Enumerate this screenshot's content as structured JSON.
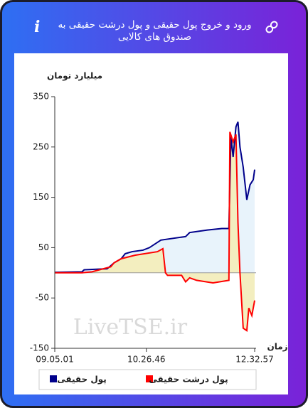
{
  "title": "ورود و خروج پول حقیقی و پول درشت حقیقی به صندوق های کالایی",
  "chart_data": {
    "type": "line",
    "y_label": "میلیارد تومان",
    "x_label": "زمان",
    "annotation": "LiveTSE.ir",
    "xlim": [
      0,
      100
    ],
    "xticks": [
      {
        "value": 0,
        "label": "09.05.01"
      },
      {
        "value": 45.5,
        "label": "10.26.46"
      },
      {
        "value": 99.3,
        "label": "12.32.57"
      }
    ],
    "ylim": [
      -150,
      350
    ],
    "yticks": [
      350,
      250,
      150,
      50,
      -50,
      -150
    ],
    "zero_line": true,
    "series": [
      {
        "name": "پول حقیقی",
        "color": "#00008b",
        "fill": "#e8f3fb",
        "x": [
          0,
          13.5,
          14.6,
          26,
          27.8,
          29.5,
          33,
          35,
          38.4,
          43.8,
          47,
          52.7,
          65,
          67,
          75.8,
          83,
          86.5,
          87.5,
          88.6,
          90,
          91,
          92,
          93.6,
          95.4,
          97,
          98.6,
          99.3
        ],
        "values": [
          1,
          2,
          6,
          8,
          14,
          20,
          28,
          38,
          42,
          45,
          50,
          65,
          72,
          80,
          85,
          88,
          88,
          270,
          230,
          290,
          300,
          250,
          210,
          145,
          175,
          185,
          205
        ]
      },
      {
        "name": "پول درشت حقیقی",
        "color": "#ff0000",
        "fill": "#f3eebf",
        "x": [
          0,
          13.5,
          18.5,
          27.8,
          29.5,
          33,
          40,
          51,
          53.7,
          55,
          56,
          63,
          65,
          67,
          70.5,
          78.6,
          86.5,
          87,
          88.6,
          90,
          91,
          92,
          93.6,
          95.4,
          96.4,
          97.9,
          99.3
        ],
        "values": [
          0,
          0,
          2,
          12,
          20,
          28,
          35,
          42,
          48,
          0,
          -5,
          -5,
          -18,
          -10,
          -15,
          -20,
          -15,
          280,
          260,
          275,
          100,
          0,
          -110,
          -115,
          -70,
          -85,
          -55
        ]
      }
    ]
  }
}
